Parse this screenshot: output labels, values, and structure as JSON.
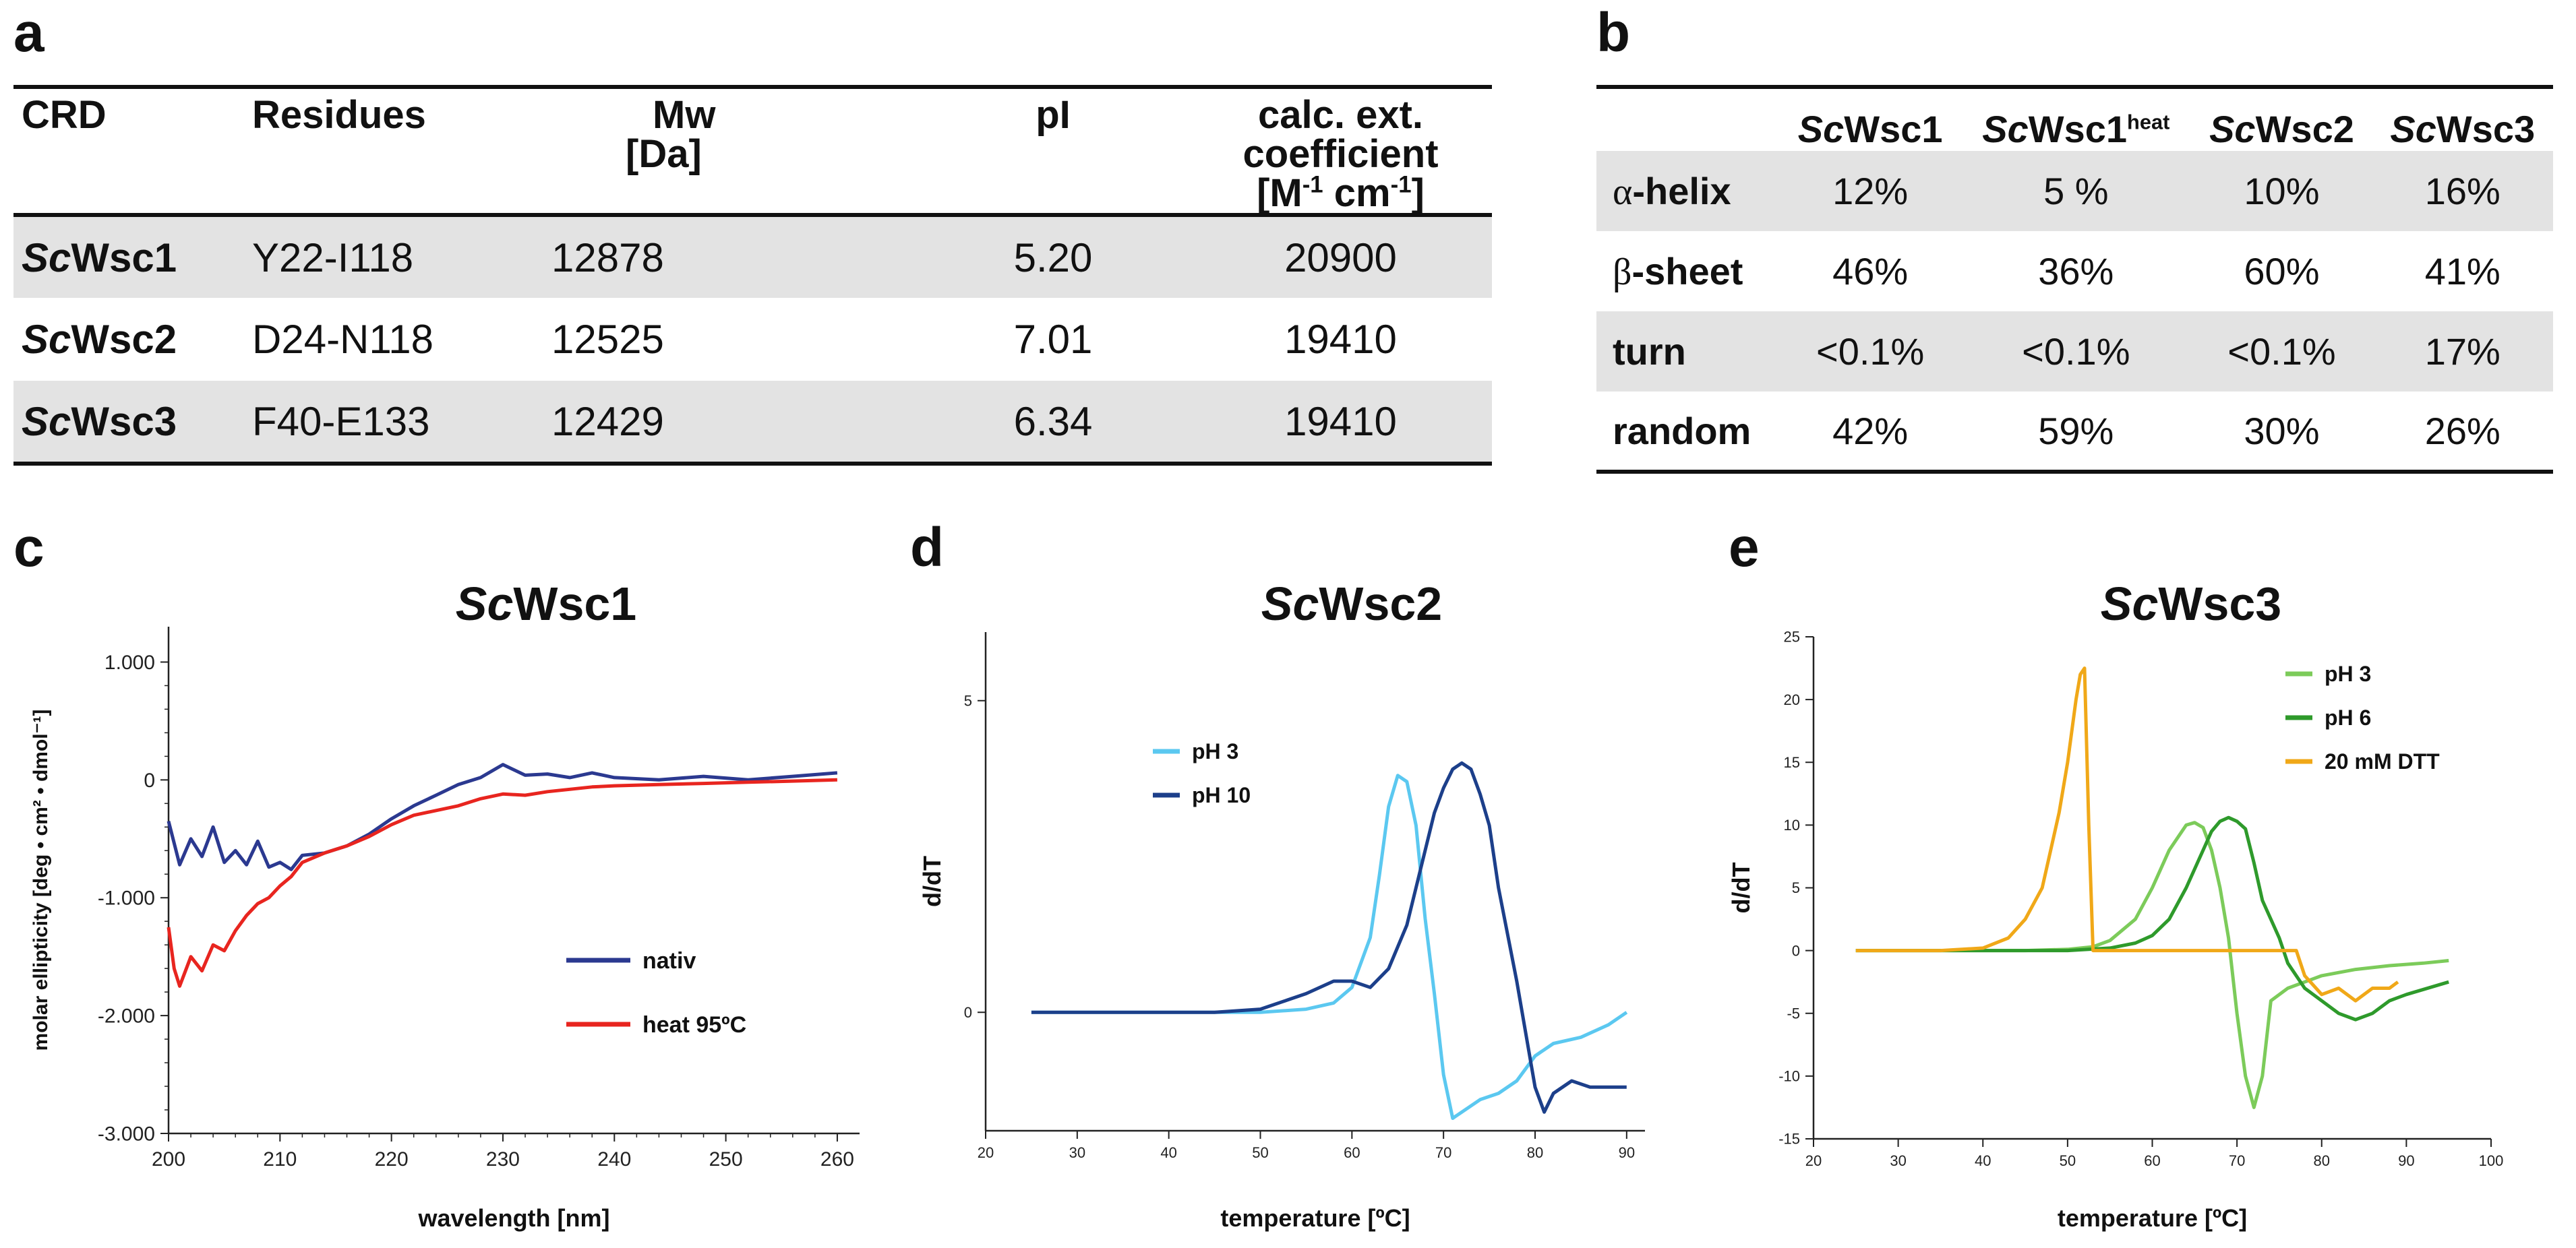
{
  "panel_labels": [
    "a",
    "b",
    "c",
    "d",
    "e"
  ],
  "table_a": {
    "headers": [
      {
        "line1": "CRD",
        "line2": ""
      },
      {
        "line1": "Residues",
        "line2": ""
      },
      {
        "line1": "Mw",
        "line2": "[Da]"
      },
      {
        "line1": "pI",
        "line2": ""
      },
      {
        "line1": "calc. ext. coefficient",
        "line2_parts": [
          "[M",
          "-1",
          " cm",
          "-1",
          "]"
        ]
      }
    ],
    "rows": [
      {
        "prefix": "Sc",
        "name": "Wsc1",
        "residues": "Y22-I118",
        "mw": "12878",
        "pi": "5.20",
        "ext": "20900"
      },
      {
        "prefix": "Sc",
        "name": "Wsc2",
        "residues": "D24-N118",
        "mw": "12525",
        "pi": "7.01",
        "ext": "19410"
      },
      {
        "prefix": "Sc",
        "name": "Wsc3",
        "residues": "F40-E133",
        "mw": "12429",
        "pi": "6.34",
        "ext": "19410"
      }
    ]
  },
  "table_b": {
    "columns": [
      {
        "prefix": "Sc",
        "name": "Wsc1",
        "sup": ""
      },
      {
        "prefix": "Sc",
        "name": "Wsc1",
        "sup": "heat"
      },
      {
        "prefix": "Sc",
        "name": "Wsc2",
        "sup": ""
      },
      {
        "prefix": "Sc",
        "name": "Wsc3",
        "sup": ""
      }
    ],
    "rows": [
      {
        "greek": "α",
        "label": "-helix",
        "values": [
          "12%",
          "5 %",
          "10%",
          "16%"
        ]
      },
      {
        "greek": "β",
        "label": "-sheet",
        "values": [
          "46%",
          "36%",
          "60%",
          "41%"
        ]
      },
      {
        "greek": "",
        "label": "turn",
        "values": [
          "<0.1%",
          "<0.1%",
          "<0.1%",
          "17%"
        ]
      },
      {
        "greek": "",
        "label": "random",
        "values": [
          "42%",
          "59%",
          "30%",
          "26%"
        ]
      }
    ]
  },
  "chart_data": [
    {
      "panel": "c",
      "type": "line",
      "title_prefix": "Sc",
      "title": "Wsc1",
      "xlabel": "wavelength [nm]",
      "ylabel": "molar ellipticity [deg • cm² • dmol⁻¹]",
      "xlim": [
        200,
        262
      ],
      "ylim": [
        -3000,
        1300
      ],
      "xticks": [
        200,
        210,
        220,
        230,
        240,
        250,
        260
      ],
      "yticks": [
        1000,
        0,
        -1000,
        -2000,
        -3000
      ],
      "ytick_labels": [
        "1.000",
        "0",
        "-1.000",
        "-2.000",
        "-3.000"
      ],
      "legend_position": "center-right",
      "series": [
        {
          "name": "nativ",
          "color": "#2b3990",
          "x": [
            200,
            201,
            202,
            203,
            204,
            205,
            206,
            207,
            208,
            209,
            210,
            211,
            212,
            214,
            216,
            218,
            220,
            222,
            224,
            226,
            228,
            230,
            232,
            234,
            236,
            238,
            240,
            244,
            248,
            252,
            256,
            260
          ],
          "y": [
            -350,
            -720,
            -500,
            -650,
            -400,
            -700,
            -600,
            -720,
            -520,
            -740,
            -700,
            -760,
            -640,
            -620,
            -560,
            -460,
            -330,
            -220,
            -130,
            -40,
            20,
            130,
            40,
            50,
            20,
            60,
            20,
            0,
            30,
            0,
            30,
            60
          ]
        },
        {
          "name": "heat 95ºC",
          "color": "#e8251f",
          "x": [
            200,
            200.5,
            201,
            202,
            203,
            204,
            205,
            206,
            207,
            208,
            209,
            210,
            211,
            212,
            214,
            216,
            218,
            220,
            222,
            224,
            226,
            228,
            230,
            232,
            234,
            236,
            238,
            240,
            244,
            248,
            252,
            256,
            260
          ],
          "y": [
            -1250,
            -1600,
            -1750,
            -1500,
            -1620,
            -1400,
            -1450,
            -1280,
            -1150,
            -1050,
            -1000,
            -900,
            -820,
            -700,
            -620,
            -560,
            -480,
            -380,
            -300,
            -260,
            -220,
            -160,
            -120,
            -130,
            -100,
            -80,
            -60,
            -50,
            -40,
            -30,
            -20,
            -10,
            0
          ]
        }
      ]
    },
    {
      "panel": "d",
      "type": "line",
      "title_prefix": "Sc",
      "title": "Wsc2",
      "xlabel": "temperature [ºC]",
      "ylabel": "d/dT",
      "xlim": [
        20,
        92
      ],
      "ylim": [
        -1.9,
        6.1
      ],
      "xticks": [
        20,
        30,
        40,
        50,
        60,
        70,
        80,
        90
      ],
      "yticks": [
        5,
        0
      ],
      "legend_position": "top-left",
      "series": [
        {
          "name": "pH 3",
          "color": "#5bc8f0",
          "x": [
            25,
            30,
            35,
            40,
            45,
            50,
            55,
            58,
            60,
            62,
            63,
            64,
            65,
            66,
            67,
            68,
            69,
            70,
            71,
            72,
            74,
            76,
            78,
            80,
            82,
            85,
            88,
            90
          ],
          "y": [
            0,
            0,
            0,
            0,
            0,
            0,
            0.05,
            0.15,
            0.4,
            1.2,
            2.2,
            3.3,
            3.8,
            3.7,
            3.0,
            1.5,
            0.3,
            -1.0,
            -1.7,
            -1.6,
            -1.4,
            -1.3,
            -1.1,
            -0.7,
            -0.5,
            -0.4,
            -0.2,
            0
          ]
        },
        {
          "name": "pH 10",
          "color": "#1c3f8a",
          "x": [
            25,
            30,
            35,
            40,
            45,
            50,
            53,
            55,
            58,
            60,
            62,
            64,
            66,
            67,
            68,
            69,
            70,
            71,
            72,
            73,
            74,
            75,
            76,
            78,
            80,
            81,
            82,
            84,
            86,
            88,
            90
          ],
          "y": [
            0,
            0,
            0,
            0,
            0,
            0.05,
            0.2,
            0.3,
            0.5,
            0.5,
            0.4,
            0.7,
            1.4,
            2.0,
            2.6,
            3.2,
            3.6,
            3.9,
            4.0,
            3.9,
            3.5,
            3.0,
            2.0,
            0.5,
            -1.2,
            -1.6,
            -1.3,
            -1.1,
            -1.2,
            -1.2,
            -1.2
          ]
        }
      ]
    },
    {
      "panel": "e",
      "type": "line",
      "title_prefix": "Sc",
      "title": "Wsc3",
      "xlabel": "temperature [ºC]",
      "ylabel": "d/dT",
      "xlim": [
        20,
        100
      ],
      "ylim": [
        -15,
        25
      ],
      "xticks": [
        20,
        30,
        40,
        50,
        60,
        70,
        80,
        90,
        100
      ],
      "yticks": [
        25,
        20,
        15,
        10,
        5,
        0,
        -5,
        -10,
        -15
      ],
      "legend_position": "top-right",
      "series": [
        {
          "name": "pH 3",
          "color": "#7ccb5a",
          "x": [
            25,
            30,
            35,
            40,
            45,
            50,
            53,
            55,
            58,
            60,
            62,
            64,
            65,
            66,
            67,
            68,
            69,
            70,
            71,
            72,
            73,
            74,
            76,
            78,
            80,
            84,
            88,
            92,
            95
          ],
          "y": [
            0,
            0,
            0,
            0,
            0,
            0.1,
            0.3,
            0.8,
            2.5,
            5,
            8,
            10,
            10.2,
            9.8,
            8,
            5,
            1,
            -5,
            -10,
            -12.5,
            -10,
            -4,
            -3,
            -2.5,
            -2,
            -1.5,
            -1.2,
            -1.0,
            -0.8
          ]
        },
        {
          "name": "pH 6",
          "color": "#2e9a2b",
          "x": [
            25,
            30,
            35,
            40,
            45,
            50,
            55,
            58,
            60,
            62,
            64,
            66,
            67,
            68,
            69,
            70,
            71,
            72,
            73,
            74,
            75,
            76,
            78,
            80,
            82,
            84,
            86,
            88,
            90,
            95
          ],
          "y": [
            0,
            0,
            0,
            0,
            0,
            0,
            0.2,
            0.6,
            1.2,
            2.5,
            5,
            8,
            9.5,
            10.3,
            10.6,
            10.3,
            9.7,
            7,
            4,
            2.5,
            1,
            -1,
            -3,
            -4,
            -5,
            -5.5,
            -5,
            -4,
            -3.5,
            -2.5
          ]
        },
        {
          "name": "20 mM DTT",
          "color": "#f0a818",
          "x": [
            25,
            30,
            35,
            40,
            43,
            45,
            47,
            48,
            49,
            50,
            51,
            51.5,
            52,
            52.5,
            53,
            55,
            60,
            65,
            70,
            75,
            77,
            78,
            80,
            82,
            84,
            86,
            88,
            89
          ],
          "y": [
            0,
            0,
            0,
            0.2,
            1,
            2.5,
            5,
            8,
            11,
            15,
            20,
            22,
            22.5,
            10,
            0,
            0,
            0,
            0,
            0,
            0,
            0,
            -2,
            -3.5,
            -3,
            -4,
            -3,
            -3,
            -2.5
          ]
        }
      ]
    }
  ]
}
